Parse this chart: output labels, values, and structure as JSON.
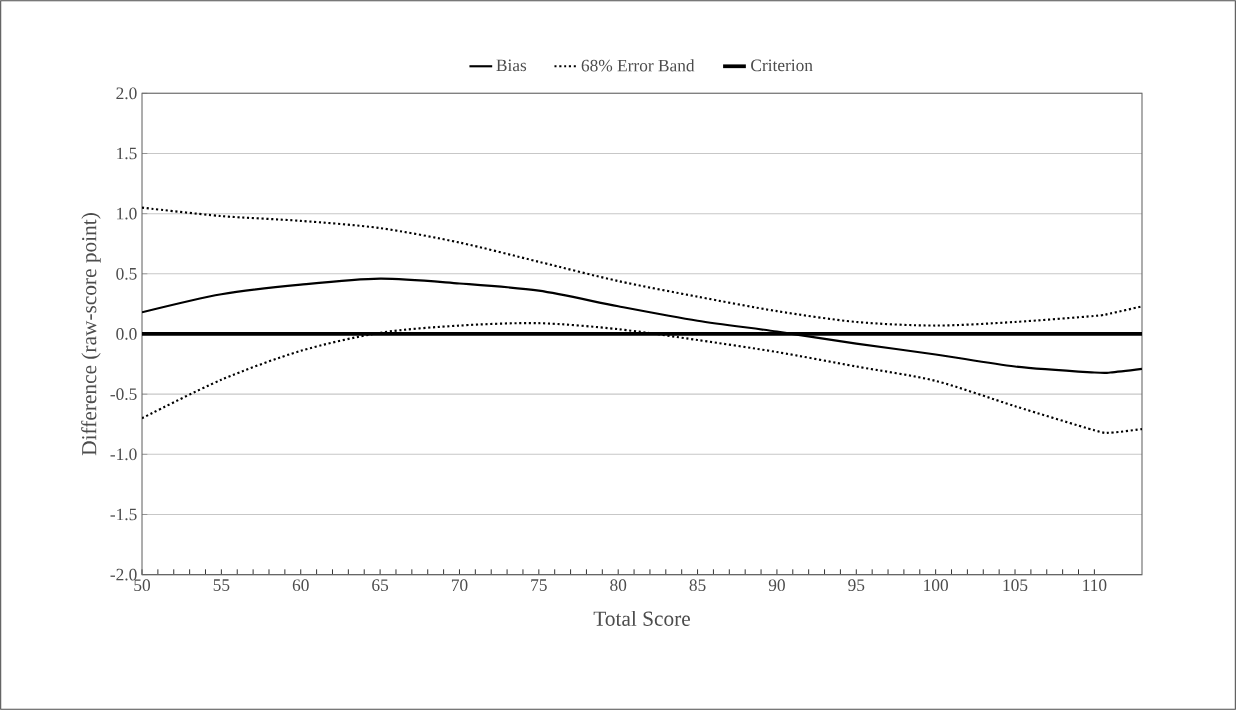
{
  "chart_data": {
    "type": "line",
    "xlabel": "Total Score",
    "ylabel": "Difference (raw-score point)",
    "x": [
      50,
      55,
      60,
      65,
      70,
      75,
      80,
      85,
      90,
      95,
      100,
      105,
      110,
      111,
      113
    ],
    "series": [
      {
        "name": "Bias",
        "color": "#000000",
        "line_style": "solid",
        "values": [
          0.18,
          0.33,
          0.41,
          0.46,
          0.42,
          0.36,
          0.23,
          0.11,
          0.02,
          -0.08,
          -0.17,
          -0.27,
          -0.32,
          -0.32,
          -0.29
        ]
      },
      {
        "name": "68% Error Band",
        "color": "#000000",
        "line_style": "dotted",
        "values": [
          1.05,
          0.98,
          0.94,
          0.88,
          0.76,
          0.6,
          0.44,
          0.31,
          0.19,
          0.1,
          0.07,
          0.1,
          0.15,
          0.17,
          0.23
        ]
      },
      {
        "color": "#000000",
        "line_style": "dotted",
        "values": [
          -0.7,
          -0.38,
          -0.14,
          0.01,
          0.07,
          0.09,
          0.04,
          -0.05,
          -0.15,
          -0.27,
          -0.39,
          -0.6,
          -0.8,
          -0.82,
          -0.79
        ]
      }
    ],
    "ref_lines": [
      {
        "axis": "y",
        "value": 0,
        "label": "Criterion",
        "color": "#000000"
      }
    ],
    "xlim": [
      50,
      113
    ],
    "xticks": [
      50,
      55,
      60,
      65,
      70,
      75,
      80,
      85,
      90,
      95,
      100,
      105,
      110
    ],
    "ylim": [
      -2.0,
      2.0
    ],
    "yticks": [
      {
        "value": -2,
        "label": "-2.0"
      },
      {
        "value": -1.5,
        "label": "-1.5"
      },
      {
        "value": -1,
        "label": "-1.0"
      },
      {
        "value": -0.5,
        "label": "-0.5"
      },
      {
        "value": 0,
        "label": "0.0"
      },
      {
        "value": 0.5,
        "label": "0.5"
      },
      {
        "value": 1,
        "label": "1.0"
      },
      {
        "value": 1.5,
        "label": "1.5"
      },
      {
        "value": 2,
        "label": "2.0"
      }
    ],
    "grid": "y",
    "legend": "top",
    "marker": "none"
  }
}
